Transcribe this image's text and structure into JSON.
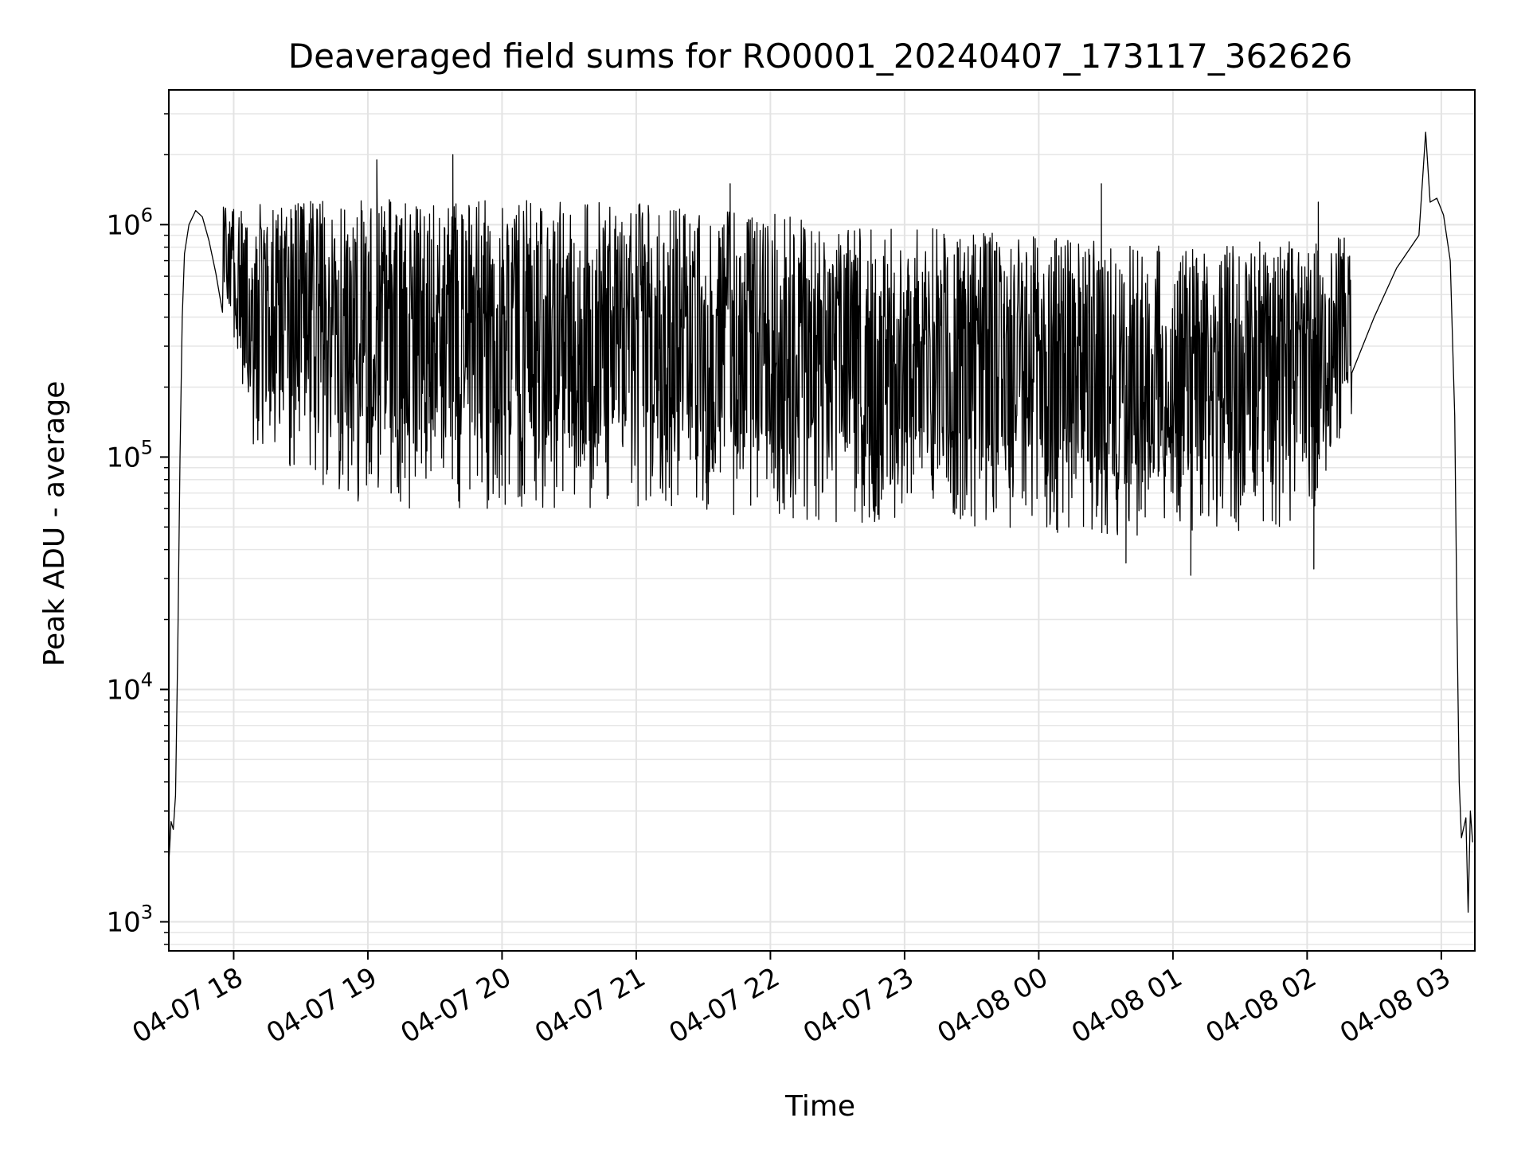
{
  "chart_data": {
    "type": "line",
    "title": "Deaveraged field sums for RO0001_20240407_173117_362626",
    "xlabel": "Time",
    "ylabel": "Peak ADU - average",
    "yscale": "log",
    "xlim": [
      "2024-04-07 17:31",
      "2024-04-08 03:15"
    ],
    "ylim": [
      750,
      3800000
    ],
    "grid": true,
    "line_color": "#000000",
    "x_ticks": [
      {
        "label": "04-07 18",
        "time": "2024-04-07 18:00"
      },
      {
        "label": "04-07 19",
        "time": "2024-04-07 19:00"
      },
      {
        "label": "04-07 20",
        "time": "2024-04-07 20:00"
      },
      {
        "label": "04-07 21",
        "time": "2024-04-07 21:00"
      },
      {
        "label": "04-07 22",
        "time": "2024-04-07 22:00"
      },
      {
        "label": "04-07 23",
        "time": "2024-04-07 23:00"
      },
      {
        "label": "04-08 00",
        "time": "2024-04-08 00:00"
      },
      {
        "label": "04-08 01",
        "time": "2024-04-08 01:00"
      },
      {
        "label": "04-08 02",
        "time": "2024-04-08 02:00"
      },
      {
        "label": "04-08 03",
        "time": "2024-04-08 03:00"
      }
    ],
    "y_ticks": [
      {
        "base": "10",
        "exp": "3",
        "value": 1000
      },
      {
        "base": "10",
        "exp": "4",
        "value": 10000
      },
      {
        "base": "10",
        "exp": "5",
        "value": 100000
      },
      {
        "base": "10",
        "exp": "6",
        "value": 1000000
      }
    ],
    "series": [
      {
        "points": [
          [
            "2024-04-07 17:31",
            1800
          ],
          [
            "2024-04-07 17:32",
            2700
          ],
          [
            "2024-04-07 17:33",
            2500
          ],
          [
            "2024-04-07 17:34",
            3500
          ],
          [
            "2024-04-07 17:35",
            15000
          ],
          [
            "2024-04-07 17:36",
            100000
          ],
          [
            "2024-04-07 17:37",
            400000
          ],
          [
            "2024-04-07 17:38",
            750000
          ],
          [
            "2024-04-07 17:40",
            1000000
          ],
          [
            "2024-04-07 17:43",
            1150000
          ],
          [
            "2024-04-07 17:46",
            1080000
          ],
          [
            "2024-04-07 17:49",
            850000
          ],
          [
            "2024-04-07 17:52",
            620000
          ],
          [
            "2024-04-07 17:55",
            420000
          ],
          [
            "2024-04-08 02:20",
            230000
          ],
          [
            "2024-04-08 02:30",
            400000
          ],
          [
            "2024-04-08 02:40",
            650000
          ],
          [
            "2024-04-08 02:50",
            900000
          ],
          [
            "2024-04-08 02:53",
            2500000
          ],
          [
            "2024-04-08 02:55",
            1250000
          ],
          [
            "2024-04-08 02:58",
            1300000
          ],
          [
            "2024-04-08 03:01",
            1100000
          ],
          [
            "2024-04-08 03:04",
            700000
          ],
          [
            "2024-04-08 03:06",
            150000
          ],
          [
            "2024-04-08 03:07",
            20000
          ],
          [
            "2024-04-08 03:08",
            4000
          ],
          [
            "2024-04-08 03:09",
            2300
          ],
          [
            "2024-04-08 03:11",
            2800
          ],
          [
            "2024-04-08 03:12",
            1100
          ],
          [
            "2024-04-08 03:13",
            3000
          ],
          [
            "2024-04-08 03:14",
            2200
          ]
        ],
        "noisy_band": {
          "from": "2024-04-07 17:55",
          "to": "2024-04-08 02:20",
          "samples_per_minute": 5,
          "upper_envelope": [
            [
              "2024-04-07 17:55",
              1200000
            ],
            [
              "2024-04-07 19:00",
              1300000
            ],
            [
              "2024-04-07 21:00",
              1250000
            ],
            [
              "2024-04-07 23:00",
              1000000
            ],
            [
              "2024-04-08 01:00",
              800000
            ],
            [
              "2024-04-08 02:20",
              900000
            ]
          ],
          "lower_envelope": [
            [
              "2024-04-07 17:55",
              400000
            ],
            [
              "2024-04-07 18:10",
              100000
            ],
            [
              "2024-04-07 19:00",
              60000
            ],
            [
              "2024-04-07 21:00",
              60000
            ],
            [
              "2024-04-07 23:00",
              50000
            ],
            [
              "2024-04-08 01:00",
              45000
            ],
            [
              "2024-04-08 02:00",
              50000
            ],
            [
              "2024-04-08 02:20",
              150000
            ]
          ],
          "spikes": [
            [
              "2024-04-07 19:04",
              1900000
            ],
            [
              "2024-04-07 19:38",
              2000000
            ],
            [
              "2024-04-07 21:42",
              1500000
            ],
            [
              "2024-04-08 00:28",
              1500000
            ],
            [
              "2024-04-08 02:05",
              1250000
            ],
            [
              "2024-04-08 01:08",
              31000
            ],
            [
              "2024-04-08 02:03",
              33000
            ],
            [
              "2024-04-08 00:39",
              35000
            ]
          ]
        }
      }
    ]
  }
}
